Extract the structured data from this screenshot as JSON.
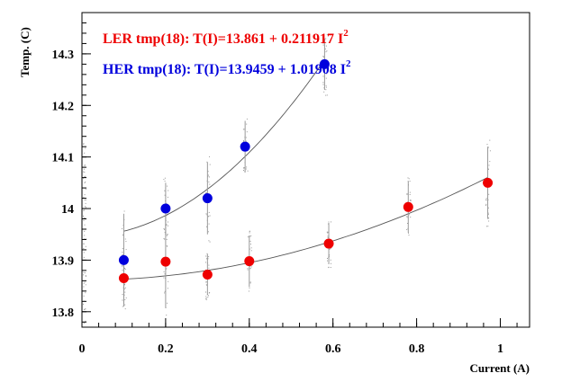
{
  "chart_data": {
    "type": "scatter",
    "xlabel": "Current (A)",
    "ylabel": "Temp. (C)",
    "xlim": [
      0,
      1.07
    ],
    "ylim": [
      13.77,
      14.38
    ],
    "xticks": [
      0,
      0.2,
      0.4,
      0.6,
      0.8,
      1
    ],
    "xtick_labels": [
      "0",
      "0.2",
      "0.4",
      "0.6",
      "0.8",
      "1"
    ],
    "yticks": [
      13.8,
      13.9,
      14.0,
      14.1,
      14.2,
      14.3
    ],
    "ytick_labels": [
      "13.8",
      "13.9",
      "14",
      "14.1",
      "14.2",
      "14.3"
    ],
    "grid": false,
    "series": [
      {
        "name": "LER tmp(18)",
        "color": "#ee0000",
        "fit": {
          "label": "LER tmp(18): T(I)=13.861 + 0.211917 I",
          "a": 13.861,
          "b": 0.211917,
          "xrange": [
            0.1,
            0.97
          ]
        },
        "points": [
          {
            "x": 0.1,
            "y": 13.865,
            "err": 0.05
          },
          {
            "x": 0.2,
            "y": 13.897,
            "err": 0.09
          },
          {
            "x": 0.3,
            "y": 13.872,
            "err": 0.04
          },
          {
            "x": 0.4,
            "y": 13.898,
            "err": 0.05
          },
          {
            "x": 0.59,
            "y": 13.932,
            "err": 0.04
          },
          {
            "x": 0.78,
            "y": 14.003,
            "err": 0.05
          },
          {
            "x": 0.97,
            "y": 14.05,
            "err": 0.07
          }
        ]
      },
      {
        "name": "HER tmp(18)",
        "color": "#0000dd",
        "fit": {
          "label": "HER tmp(18): T(I)=13.9459 + 1.01908 I",
          "a": 13.9459,
          "b": 1.01908,
          "xrange": [
            0.1,
            0.58
          ]
        },
        "points": [
          {
            "x": 0.1,
            "y": 13.9,
            "err": 0.09
          },
          {
            "x": 0.2,
            "y": 14.0,
            "err": 0.05
          },
          {
            "x": 0.3,
            "y": 14.02,
            "err": 0.07
          },
          {
            "x": 0.39,
            "y": 14.12,
            "err": 0.05
          },
          {
            "x": 0.58,
            "y": 14.28,
            "err": 0.05
          }
        ]
      }
    ],
    "exponent": "2"
  }
}
